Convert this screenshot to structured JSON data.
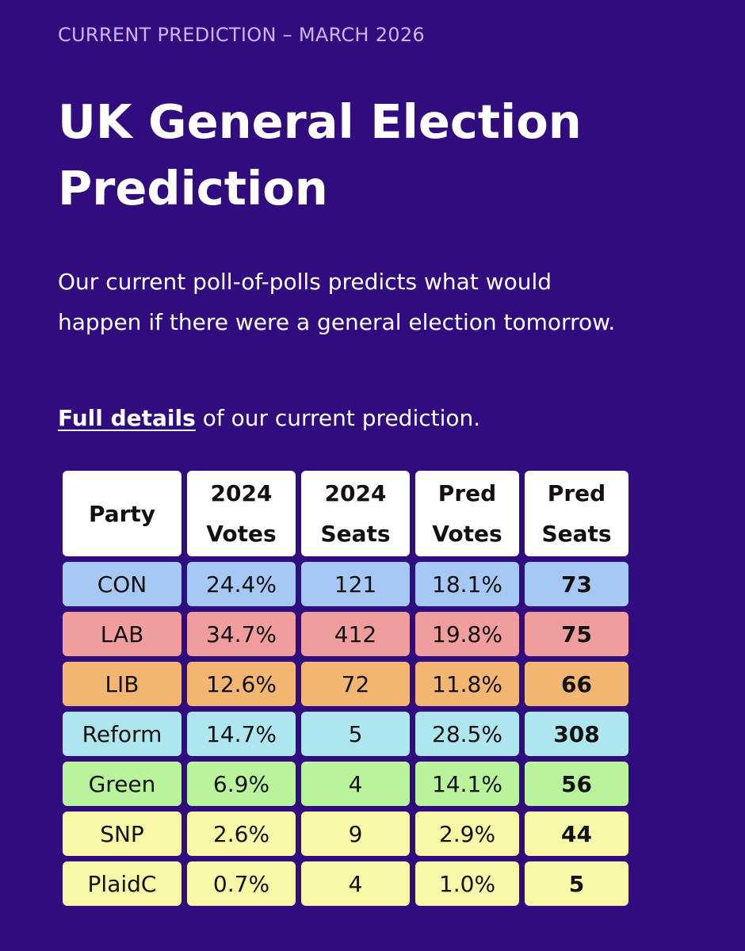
{
  "header": {
    "eyebrow": "CURRENT PREDICTION – MARCH 2026",
    "title": "UK General Election Prediction"
  },
  "intro": {
    "text": "Our current poll-of-polls predicts what would happen if there were a general election tomorrow.",
    "details_link": "Full details",
    "details_suffix": " of our current prediction."
  },
  "table": {
    "columns": [
      {
        "line1": "Party",
        "line2": ""
      },
      {
        "line1": "2024",
        "line2": "Votes"
      },
      {
        "line1": "2024",
        "line2": "Seats"
      },
      {
        "line1": "Pred",
        "line2": "Votes"
      },
      {
        "line1": "Pred",
        "line2": "Seats"
      }
    ],
    "rows": [
      {
        "party": "CON",
        "votes_2024": "24.4%",
        "seats_2024": "121",
        "pred_votes": "18.1%",
        "pred_seats": "73",
        "color": "#a5c8f5"
      },
      {
        "party": "LAB",
        "votes_2024": "34.7%",
        "seats_2024": "412",
        "pred_votes": "19.8%",
        "pred_seats": "75",
        "color": "#ef9d9d"
      },
      {
        "party": "LIB",
        "votes_2024": "12.6%",
        "seats_2024": "72",
        "pred_votes": "11.8%",
        "pred_seats": "66",
        "color": "#f2b672"
      },
      {
        "party": "Reform",
        "votes_2024": "14.7%",
        "seats_2024": "5",
        "pred_votes": "28.5%",
        "pred_seats": "308",
        "color": "#ade6ef"
      },
      {
        "party": "Green",
        "votes_2024": "6.9%",
        "seats_2024": "4",
        "pred_votes": "14.1%",
        "pred_seats": "56",
        "color": "#b9f49d"
      },
      {
        "party": "SNP",
        "votes_2024": "2.6%",
        "seats_2024": "9",
        "pred_votes": "2.9%",
        "pred_seats": "44",
        "color": "#f9f8a7"
      },
      {
        "party": "PlaidC",
        "votes_2024": "0.7%",
        "seats_2024": "4",
        "pred_votes": "1.0%",
        "pred_seats": "5",
        "color": "#f9f8a7"
      }
    ]
  }
}
